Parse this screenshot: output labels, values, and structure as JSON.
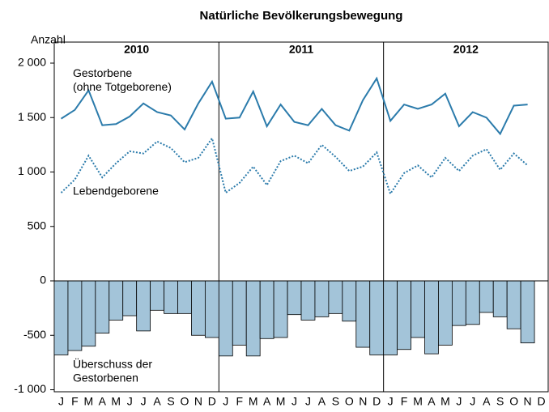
{
  "chart_data": {
    "type": "combo",
    "title": "Natürliche Bevölkerungsbewegung",
    "y_label": "Anzahl",
    "groups": [
      "2010",
      "2011",
      "2012"
    ],
    "categories": [
      "J",
      "F",
      "M",
      "A",
      "M",
      "J",
      "J",
      "A",
      "S",
      "O",
      "N",
      "D",
      "J",
      "F",
      "M",
      "A",
      "M",
      "J",
      "J",
      "A",
      "S",
      "O",
      "N",
      "D",
      "J",
      "F",
      "M",
      "A",
      "M",
      "J",
      "J",
      "A",
      "S",
      "O",
      "N",
      "D"
    ],
    "ylim": [
      -1000,
      2000
    ],
    "yticks": [
      {
        "value": 2000,
        "label": "2 000"
      },
      {
        "value": 1500,
        "label": "1 500"
      },
      {
        "value": 1000,
        "label": "1 000"
      },
      500,
      0,
      -500,
      {
        "value": -1000,
        "label": "-1 000"
      }
    ],
    "series": [
      {
        "name": "Überschuss der Gestorbenen",
        "type": "bar",
        "color": "#a3c4d9",
        "values": [
          -680,
          -640,
          -600,
          -480,
          -360,
          -320,
          -460,
          -270,
          -300,
          -300,
          -500,
          -520,
          -690,
          -590,
          -690,
          -530,
          -520,
          -310,
          -360,
          -330,
          -300,
          -370,
          -610,
          -680,
          -680,
          -630,
          -520,
          -670,
          -590,
          -410,
          -400,
          -290,
          -330,
          -440,
          -570,
          null
        ]
      },
      {
        "name": "Gestorbene (ohne Totgeborene)",
        "type": "line",
        "color": "#2b7bab",
        "dash": "none",
        "values": [
          1490,
          1570,
          1750,
          1430,
          1440,
          1510,
          1630,
          1550,
          1520,
          1390,
          1630,
          1830,
          1490,
          1500,
          1740,
          1420,
          1620,
          1460,
          1430,
          1580,
          1430,
          1380,
          1660,
          1860,
          1470,
          1620,
          1580,
          1620,
          1720,
          1420,
          1550,
          1500,
          1350,
          1610,
          1620,
          null
        ]
      },
      {
        "name": "Lebendgeborene",
        "type": "line",
        "color": "#2b7bab",
        "dash": "2,2",
        "values": [
          810,
          930,
          1150,
          950,
          1080,
          1190,
          1170,
          1280,
          1220,
          1090,
          1130,
          1310,
          810,
          900,
          1050,
          880,
          1100,
          1150,
          1080,
          1250,
          1140,
          1010,
          1050,
          1180,
          800,
          990,
          1060,
          950,
          1130,
          1010,
          1150,
          1210,
          1020,
          1170,
          1060,
          null
        ]
      }
    ],
    "annotations": [
      {
        "lines": [
          "Gestorbene",
          "(ohne Totgeborene)"
        ],
        "value": 1900
      },
      {
        "lines": [
          "Lebendgeborene"
        ],
        "value": 820
      },
      {
        "lines": [
          "Überschuss der",
          "Gestorbenen"
        ],
        "value": -770
      }
    ]
  }
}
